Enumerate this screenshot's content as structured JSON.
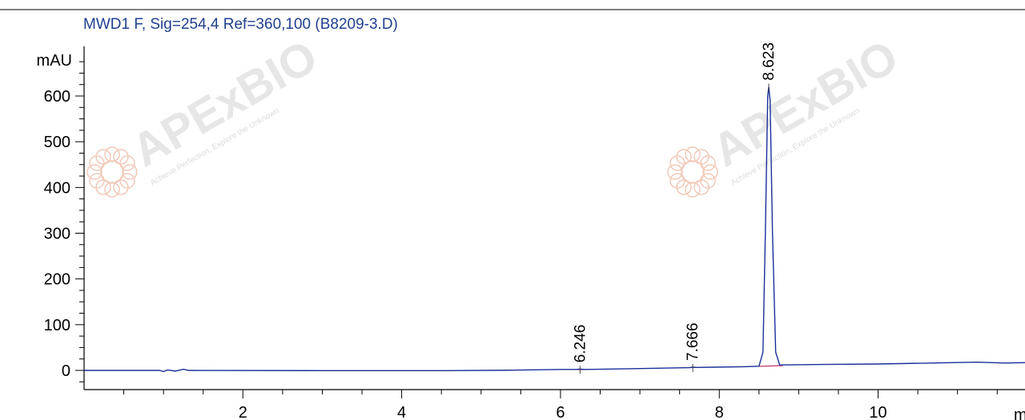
{
  "chart_data": {
    "type": "line",
    "title": "MWD1 F, Sig=254,4 Ref=360,100 (B8209-3.D)",
    "ylabel": "mAU",
    "xlabel": "mi",
    "xlim": [
      0,
      11.85
    ],
    "ylim": [
      -38,
      700
    ],
    "xticks": [
      2,
      4,
      6,
      8,
      10
    ],
    "yticks": [
      0,
      100,
      200,
      300,
      400,
      500,
      600
    ],
    "grid": false,
    "colors": {
      "signal": "#1a2f9a",
      "baseline": "#c0306a",
      "title": "#1f3f8f"
    },
    "series": [
      {
        "values": [
          {
            "x": 0.0,
            "y": 0.0
          },
          {
            "x": 0.95,
            "y": 0.0
          },
          {
            "x": 1.0,
            "y": -2.5
          },
          {
            "x": 1.05,
            "y": 1.0
          },
          {
            "x": 1.15,
            "y": -1.5
          },
          {
            "x": 1.25,
            "y": 2.5
          },
          {
            "x": 1.32,
            "y": 0.0
          },
          {
            "x": 3.0,
            "y": -0.5
          },
          {
            "x": 4.55,
            "y": -0.5
          },
          {
            "x": 5.4,
            "y": 0.5
          },
          {
            "x": 6.0,
            "y": 2.0
          },
          {
            "x": 6.2,
            "y": 2.0
          },
          {
            "x": 6.246,
            "y": 3.0
          },
          {
            "x": 6.3,
            "y": 2.0
          },
          {
            "x": 7.0,
            "y": 4.0
          },
          {
            "x": 7.62,
            "y": 6.0
          },
          {
            "x": 7.666,
            "y": 7.0
          },
          {
            "x": 7.72,
            "y": 6.5
          },
          {
            "x": 8.3,
            "y": 8.0
          },
          {
            "x": 8.5,
            "y": 9.0
          },
          {
            "x": 8.55,
            "y": 40.0
          },
          {
            "x": 8.58,
            "y": 300.0
          },
          {
            "x": 8.61,
            "y": 600.0
          },
          {
            "x": 8.623,
            "y": 620.0
          },
          {
            "x": 8.64,
            "y": 590.0
          },
          {
            "x": 8.67,
            "y": 300.0
          },
          {
            "x": 8.71,
            "y": 40.0
          },
          {
            "x": 8.76,
            "y": 12.0
          },
          {
            "x": 9.3,
            "y": 13.0
          },
          {
            "x": 10.0,
            "y": 14.0
          },
          {
            "x": 11.25,
            "y": 18.0
          },
          {
            "x": 11.6,
            "y": 16.0
          },
          {
            "x": 11.85,
            "y": 17.0
          }
        ]
      }
    ],
    "peaks": [
      {
        "rt": 6.246,
        "label": "6.246",
        "height": 3.0
      },
      {
        "rt": 7.666,
        "label": "7.666",
        "height": 7.0
      },
      {
        "rt": 8.623,
        "label": "8.623",
        "height": 620.0
      }
    ],
    "baseline_segments": [
      [
        {
          "x": 6.22,
          "y": 1.5
        },
        {
          "x": 6.32,
          "y": 2.0
        }
      ],
      [
        {
          "x": 7.62,
          "y": 6.0
        },
        {
          "x": 7.72,
          "y": 6.5
        }
      ],
      [
        {
          "x": 8.5,
          "y": 9.0
        },
        {
          "x": 8.8,
          "y": 10.5
        }
      ]
    ]
  },
  "watermarks": [
    {
      "brand": "APExBIO",
      "tagline": "Achieve Perfection, Explore the Unknown"
    },
    {
      "brand": "APExBIO",
      "tagline": "Achieve Perfection, Explore the Unknown"
    }
  ]
}
